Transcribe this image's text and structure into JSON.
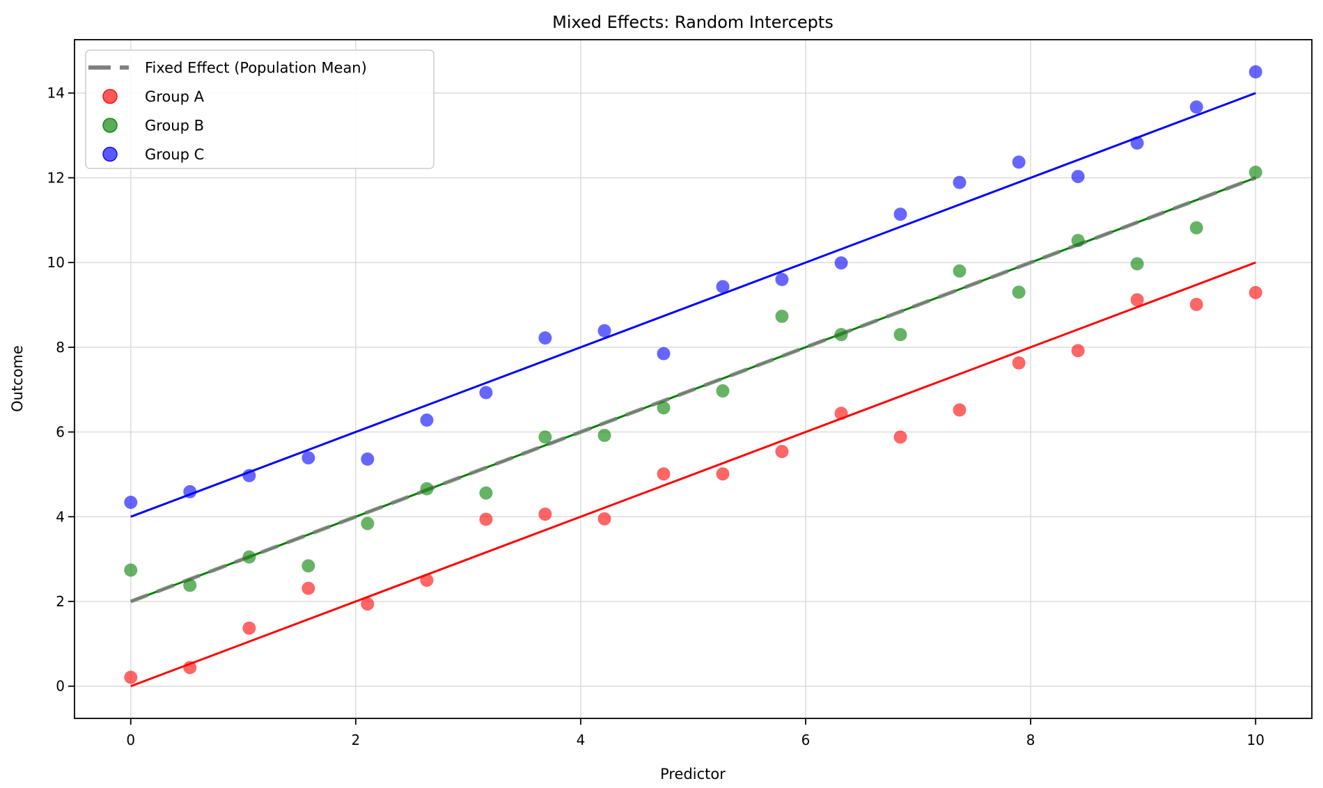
{
  "figure": {
    "title": "Mixed Effects: Random Intercepts",
    "xlabel": "Predictor",
    "ylabel": "Outcome"
  },
  "chart_data": {
    "type": "scatter",
    "title": "Mixed Effects: Random Intercepts",
    "xlabel": "Predictor",
    "ylabel": "Outcome",
    "xlim": [
      -0.5,
      10.5
    ],
    "ylim": [
      -0.76,
      15.26
    ],
    "xticks": [
      0,
      2,
      4,
      6,
      8,
      10
    ],
    "yticks": [
      0,
      2,
      4,
      6,
      8,
      10,
      12,
      14
    ],
    "grid": true,
    "grid_color": "#d9d9d9",
    "spine_color": "#000000",
    "legend_position": "upper left",
    "x": [
      0,
      0.526,
      1.053,
      1.579,
      2.105,
      2.632,
      3.158,
      3.684,
      4.211,
      4.737,
      5.263,
      5.789,
      6.316,
      6.842,
      7.368,
      7.895,
      8.421,
      8.947,
      9.474,
      10
    ],
    "series": [
      {
        "name": "Group A",
        "color": "#ff0000",
        "alpha": 0.6,
        "marker_radius": 9.5,
        "values": [
          0.21,
          0.44,
          1.37,
          2.31,
          1.94,
          2.5,
          3.94,
          4.06,
          3.95,
          5.01,
          5.01,
          5.54,
          6.44,
          5.88,
          6.52,
          7.63,
          7.92,
          9.12,
          9.01,
          9.29
        ]
      },
      {
        "name": "Group B",
        "color": "#008000",
        "alpha": 0.6,
        "marker_radius": 9.5,
        "values": [
          2.74,
          2.38,
          3.05,
          2.84,
          3.84,
          4.66,
          4.56,
          5.88,
          5.92,
          6.57,
          6.97,
          8.73,
          8.3,
          8.3,
          9.8,
          9.3,
          10.52,
          9.97,
          10.82,
          12.13
        ]
      },
      {
        "name": "Group C",
        "color": "#0000ff",
        "alpha": 0.6,
        "marker_radius": 9.5,
        "values": [
          4.34,
          4.59,
          4.97,
          5.39,
          5.36,
          6.28,
          6.93,
          8.22,
          8.39,
          7.85,
          9.43,
          9.6,
          9.99,
          11.14,
          11.89,
          12.37,
          12.03,
          12.82,
          13.67,
          14.5
        ]
      }
    ],
    "lines": [
      {
        "name": "group-a-fit-line",
        "color": "#ff0000",
        "x1": 0,
        "y1": 0,
        "x2": 10,
        "y2": 10,
        "width": 3,
        "dash": "",
        "opacity": 1
      },
      {
        "name": "group-b-fit-line",
        "color": "#008000",
        "x1": 0,
        "y1": 2,
        "x2": 10,
        "y2": 12,
        "width": 3,
        "dash": "",
        "opacity": 1
      },
      {
        "name": "group-c-fit-line",
        "color": "#0000ff",
        "x1": 0,
        "y1": 4,
        "x2": 10,
        "y2": 14,
        "width": 3,
        "dash": "",
        "opacity": 1
      },
      {
        "name": "fixed-effect-line",
        "color": "#808080",
        "x1": 0,
        "y1": 2,
        "x2": 10,
        "y2": 12,
        "width": 5.5,
        "dash": "26 14",
        "opacity": 0.85
      }
    ],
    "legend": [
      {
        "label": "Fixed Effect (Population Mean)",
        "type": "dash",
        "color": "#808080"
      },
      {
        "label": "Group A",
        "type": "marker",
        "color": "#ff0000"
      },
      {
        "label": "Group B",
        "type": "marker",
        "color": "#008000"
      },
      {
        "label": "Group C",
        "type": "marker",
        "color": "#0000ff"
      }
    ]
  }
}
